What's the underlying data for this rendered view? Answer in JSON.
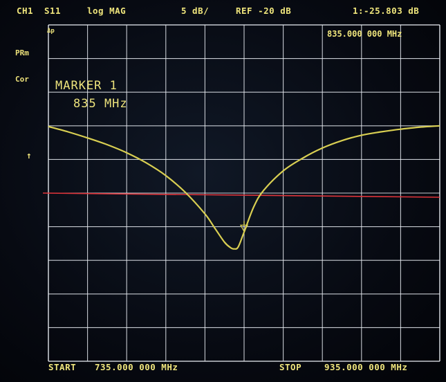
{
  "header": {
    "channel": "CH1",
    "param": "S11",
    "format": "log MAG",
    "scale": "5 dB/",
    "ref": "REF -20 dB",
    "marker_value": "1:-25.803 dB"
  },
  "side": {
    "pre": "PRm",
    "cor": "Cor",
    "ref_arrow": "↑"
  },
  "plot_area": {
    "ap_label": "Δp",
    "marker_freq_readout": "835.000 000 MHz",
    "marker_title": "MARKER 1",
    "marker_freq": "835 MHz"
  },
  "footer": {
    "start_label": "START",
    "start_value": "735.000 000 MHz",
    "stop_label": "STOP",
    "stop_value": "935.000 000 MHz"
  },
  "colors": {
    "trace": "#d9cf52",
    "grid": "#e8ecf2",
    "ref_line": "#e0343a",
    "text": "#efe57c"
  },
  "chart_data": {
    "type": "line",
    "title": "",
    "xlabel": "",
    "ylabel": "",
    "x": [
      735,
      745,
      755,
      765,
      775,
      785,
      795,
      805,
      815,
      820,
      825,
      828,
      830,
      832,
      835,
      840,
      845,
      855,
      865,
      875,
      885,
      895,
      905,
      915,
      925,
      935
    ],
    "y": [
      -10.1,
      -10.9,
      -11.8,
      -12.8,
      -14.0,
      -15.5,
      -17.4,
      -19.9,
      -23.1,
      -25.2,
      -27.3,
      -28.1,
      -28.3,
      -28.0,
      -25.8,
      -22.0,
      -19.6,
      -16.7,
      -14.8,
      -13.3,
      -12.2,
      -11.4,
      -10.9,
      -10.5,
      -10.2,
      -10.0
    ],
    "xlim": [
      735,
      935
    ],
    "ylim": [
      -45,
      5
    ],
    "reference_level": -20,
    "marker": {
      "x": 835,
      "y": -25.803
    }
  }
}
